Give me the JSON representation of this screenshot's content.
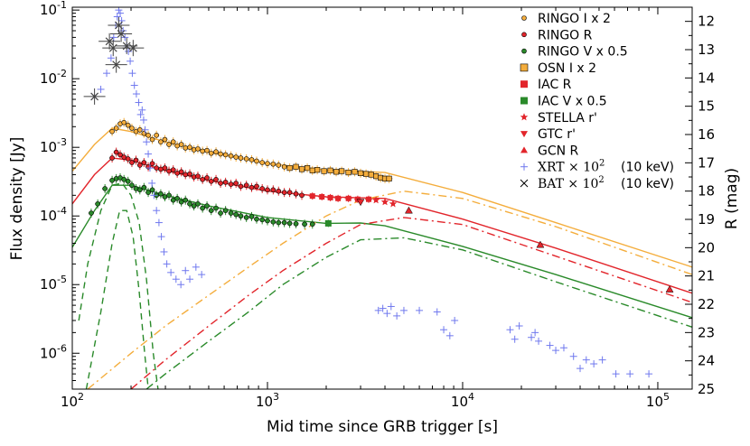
{
  "chart_data": {
    "type": "scatter",
    "title": "",
    "xlabel": "Mid time since GRB trigger [s]",
    "ylabel": "Flux density [Jy]",
    "y2label": "R (mag)",
    "x_scale": "log",
    "y_scale": "log",
    "xlim": [
      100,
      150000
    ],
    "ylim": [
      3e-07,
      0.11
    ],
    "y2lim": [
      11.5,
      25
    ],
    "x_ticks": [
      {
        "value": 100,
        "base": "10",
        "exp": "2"
      },
      {
        "value": 1000,
        "base": "10",
        "exp": "3"
      },
      {
        "value": 10000,
        "base": "10",
        "exp": "4"
      },
      {
        "value": 100000,
        "base": "10",
        "exp": "5"
      }
    ],
    "y_ticks": [
      {
        "value": 0.1,
        "base": "10",
        "exp": "-1"
      },
      {
        "value": 0.01,
        "base": "10",
        "exp": "-2"
      },
      {
        "value": 0.001,
        "base": "10",
        "exp": "-3"
      },
      {
        "value": 0.0001,
        "base": "10",
        "exp": "-4"
      },
      {
        "value": 1e-05,
        "base": "10",
        "exp": "-5"
      },
      {
        "value": 1e-06,
        "base": "10",
        "exp": "-6"
      }
    ],
    "y2_ticks": [
      "12",
      "13",
      "14",
      "15",
      "16",
      "17",
      "18",
      "19",
      "20",
      "21",
      "22",
      "23",
      "24",
      "25"
    ],
    "legend_position": "top-right",
    "legend": [
      {
        "key": "ringo_i",
        "label": "RINGO I x 2"
      },
      {
        "key": "ringo_r",
        "label": "RINGO R"
      },
      {
        "key": "ringo_v",
        "label": "RINGO V x 0.5"
      },
      {
        "key": "osn_i",
        "label": "OSN I x 2"
      },
      {
        "key": "iac_r",
        "label": "IAC R"
      },
      {
        "key": "iac_v",
        "label": "IAC V x 0.5"
      },
      {
        "key": "stella",
        "label": "STELLA r'"
      },
      {
        "key": "gtc",
        "label": "GTC r'"
      },
      {
        "key": "gcn",
        "label": "GCN R"
      },
      {
        "key": "xrt",
        "label": "XRT × 10",
        "sup": "2",
        "note": "(10 keV)"
      },
      {
        "key": "bat",
        "label": "BAT × 10",
        "sup": "2",
        "note": "(10 keV)"
      }
    ],
    "colors": {
      "orange": "#f4ad3c",
      "red": "#e2252b",
      "green": "#2a8a2a",
      "xrt": "#6f78ee",
      "bat": "#444444"
    },
    "series": [
      {
        "name": "RINGO I x 2",
        "key": "ringo_i",
        "x": [
          160,
          168,
          176,
          184,
          193,
          202,
          212,
          222,
          233,
          245,
          257,
          270,
          284,
          298,
          313,
          329,
          345,
          362,
          380,
          400,
          420,
          440,
          465,
          490,
          515,
          545,
          575,
          610,
          650,
          690,
          730,
          780,
          830,
          880,
          940,
          1000,
          1070,
          1140,
          1220
        ],
        "y": [
          0.0017,
          0.0019,
          0.0022,
          0.0023,
          0.0021,
          0.0019,
          0.0017,
          0.0018,
          0.0016,
          0.0015,
          0.0013,
          0.0015,
          0.0012,
          0.0013,
          0.0011,
          0.0012,
          0.00105,
          0.0011,
          0.00098,
          0.001,
          0.00092,
          0.00095,
          0.00088,
          0.0009,
          0.00082,
          0.00086,
          0.0008,
          0.00078,
          0.00075,
          0.00072,
          0.0007,
          0.00068,
          0.00066,
          0.00063,
          0.0006,
          0.00058,
          0.00057,
          0.00055,
          0.00052
        ]
      },
      {
        "name": "OSN I x 2",
        "key": "osn_i",
        "x": [
          1300,
          1400,
          1500,
          1600,
          1700,
          1800,
          1950,
          2100,
          2250,
          2400,
          2600,
          2800,
          3000,
          3200,
          3400,
          3600,
          3800,
          4000,
          4200
        ],
        "y": [
          0.0005,
          0.00052,
          0.00048,
          0.0005,
          0.00046,
          0.00047,
          0.00045,
          0.00046,
          0.00044,
          0.00045,
          0.00043,
          0.00044,
          0.00042,
          0.00041,
          0.0004,
          0.00038,
          0.00036,
          0.00035,
          0.00035
        ]
      },
      {
        "name": "RINGO R",
        "key": "ringo_r",
        "x": [
          160,
          168,
          176,
          184,
          193,
          202,
          212,
          222,
          233,
          245,
          257,
          270,
          284,
          298,
          313,
          329,
          345,
          362,
          380,
          400,
          420,
          440,
          465,
          490,
          515,
          545,
          575,
          610,
          650,
          690,
          730,
          780,
          830,
          880,
          940,
          1000,
          1070,
          1140,
          1220,
          1300,
          1400,
          1500
        ],
        "y": [
          0.0007,
          0.00085,
          0.00078,
          0.00072,
          0.00068,
          0.0006,
          0.00065,
          0.00055,
          0.0006,
          0.00052,
          0.00058,
          0.0005,
          0.00048,
          0.0005,
          0.00045,
          0.00047,
          0.00042,
          0.00044,
          0.0004,
          0.00041,
          0.00037,
          0.00038,
          0.00034,
          0.00036,
          0.00032,
          0.00034,
          0.0003,
          0.00031,
          0.00029,
          0.0003,
          0.00027,
          0.00028,
          0.00026,
          0.00027,
          0.00025,
          0.00024,
          0.00024,
          0.00023,
          0.00022,
          0.00022,
          0.00021,
          0.0002
        ]
      },
      {
        "name": "IAC R",
        "key": "iac_r",
        "x": [
          1700,
          1900,
          2100,
          2300,
          2600,
          2900,
          3300
        ],
        "y": [
          0.000195,
          0.00019,
          0.000185,
          0.00018,
          0.00018,
          0.000175,
          0.000175
        ]
      },
      {
        "name": "STELLA r'",
        "key": "stella",
        "x": [
          3600,
          4000,
          4400
        ],
        "y": [
          0.00017,
          0.00016,
          0.00015
        ]
      },
      {
        "name": "GTC r'",
        "key": "gtc",
        "x": [
          3000
        ],
        "y": [
          0.00016
        ]
      },
      {
        "name": "GCN R",
        "key": "gcn",
        "x": [
          5300,
          25000,
          115000
        ],
        "y": [
          0.00012,
          3.8e-05,
          8.5e-06
        ]
      },
      {
        "name": "RINGO V x 0.5",
        "key": "ringo_v",
        "x": [
          125,
          135,
          147,
          160,
          168,
          176,
          184,
          193,
          202,
          212,
          222,
          233,
          245,
          257,
          270,
          284,
          298,
          313,
          329,
          345,
          362,
          380,
          400,
          420,
          440,
          465,
          490,
          515,
          545,
          575,
          610,
          650,
          690,
          730,
          780,
          830,
          880,
          940,
          1000,
          1070,
          1140,
          1220,
          1300,
          1400,
          1550,
          1700
        ],
        "y": [
          0.00011,
          0.00015,
          0.00025,
          0.00033,
          0.00035,
          0.00036,
          0.00034,
          0.00032,
          0.00028,
          0.00025,
          0.00024,
          0.00026,
          0.00022,
          0.00024,
          0.0002,
          0.00021,
          0.00019,
          0.0002,
          0.00017,
          0.00018,
          0.00016,
          0.00017,
          0.00015,
          0.00014,
          0.00015,
          0.00013,
          0.00014,
          0.00012,
          0.00013,
          0.00011,
          0.00012,
          0.00011,
          0.000105,
          0.0001,
          9.5e-05,
          9.8e-05,
          9e-05,
          8.8e-05,
          8.5e-05,
          8.2e-05,
          8e-05,
          8e-05,
          7.8e-05,
          7.7e-05,
          7.6e-05,
          7.6e-05
        ]
      },
      {
        "name": "IAC V x 0.5",
        "key": "iac_v",
        "x": [
          2050
        ],
        "y": [
          7.8e-05
        ]
      },
      {
        "name": "XRT × 10^2 (10 keV)",
        "key": "xrt",
        "x": [
          140,
          150,
          158,
          163,
          167,
          170,
          173,
          176,
          179,
          182,
          186,
          190,
          194,
          198,
          203,
          208,
          213,
          219,
          224,
          228,
          232,
          236,
          240,
          245,
          250,
          256,
          262,
          270,
          278,
          286,
          295,
          305,
          320,
          340,
          360,
          380,
          400,
          430,
          460,
          3700,
          3900,
          4100,
          4300,
          4600,
          5000,
          6000,
          7400,
          8000,
          8600,
          9100,
          17500,
          18500,
          19500,
          22500,
          23500,
          24500,
          28000,
          30000,
          33000,
          37000,
          40000,
          43000,
          47000,
          52000,
          61000,
          72000,
          90000
        ],
        "y": [
          0.007,
          0.012,
          0.02,
          0.04,
          0.06,
          0.08,
          0.1,
          0.09,
          0.07,
          0.05,
          0.04,
          0.03,
          0.025,
          0.018,
          0.012,
          0.008,
          0.006,
          0.0045,
          0.003,
          0.0035,
          0.0025,
          0.0018,
          0.0012,
          0.0008,
          0.0005,
          0.0003,
          0.0002,
          0.00012,
          8e-05,
          5e-05,
          3e-05,
          2e-05,
          1.5e-05,
          1.2e-05,
          1e-05,
          1.6e-05,
          1.2e-05,
          1.8e-05,
          1.4e-05,
          4.2e-06,
          4.5e-06,
          3.8e-06,
          4.8e-06,
          3.5e-06,
          4.2e-06,
          4.2e-06,
          4e-06,
          2.2e-06,
          1.8e-06,
          3e-06,
          2.2e-06,
          1.6e-06,
          2.5e-06,
          1.7e-06,
          2e-06,
          1.5e-06,
          1.3e-06,
          1.1e-06,
          1.2e-06,
          9e-07,
          6e-07,
          8e-07,
          7e-07,
          8e-07,
          5e-07,
          5e-07,
          5e-07
        ]
      },
      {
        "name": "BAT × 10^2 (10 keV)",
        "key": "bat",
        "x": [
          130,
          155,
          162,
          168,
          173,
          178,
          190,
          205
        ],
        "y": [
          0.0055,
          0.035,
          0.028,
          0.016,
          0.06,
          0.045,
          0.03,
          0.028
        ]
      }
    ],
    "model_curves": [
      {
        "name": "orange total",
        "color": "#f4ad3c",
        "style": "solid",
        "x": [
          100,
          130,
          160,
          200,
          300,
          500,
          1000,
          2000,
          4000,
          10000,
          30000,
          150000
        ],
        "y": [
          0.00045,
          0.0011,
          0.0019,
          0.0017,
          0.0012,
          0.00085,
          0.00058,
          0.00047,
          0.00043,
          0.00022,
          8e-05,
          1.8e-05
        ]
      },
      {
        "name": "red total",
        "color": "#e2252b",
        "style": "solid",
        "x": [
          100,
          130,
          160,
          200,
          300,
          500,
          1000,
          2000,
          4000,
          10000,
          30000,
          150000
        ],
        "y": [
          0.00015,
          0.0004,
          0.0007,
          0.00065,
          0.00046,
          0.00033,
          0.00023,
          0.00019,
          0.00018,
          9e-05,
          3.4e-05,
          7.5e-06
        ]
      },
      {
        "name": "green total",
        "color": "#2a8a2a",
        "style": "solid",
        "x": [
          100,
          130,
          160,
          200,
          300,
          500,
          1000,
          2000,
          3000,
          4000,
          10000,
          30000,
          150000
        ],
        "y": [
          3.5e-05,
          0.00012,
          0.00028,
          0.00028,
          0.0002,
          0.00014,
          9.5e-05,
          7.8e-05,
          7.9e-05,
          7.2e-05,
          3.6e-05,
          1.4e-05,
          3.3e-06
        ]
      },
      {
        "name": "green reverse shock",
        "color": "#2a8a2a",
        "style": "dashed",
        "x": [
          108,
          120,
          140,
          160,
          180,
          200,
          220,
          240,
          260,
          275
        ],
        "y": [
          3e-06,
          2e-05,
          0.00012,
          0.00028,
          0.0003,
          0.0002,
          8e-05,
          1.2e-05,
          1e-06,
          3e-07
        ]
      },
      {
        "name": "green reverse shock 2",
        "color": "#2a8a2a",
        "style": "dashed",
        "x": [
          118,
          140,
          160,
          175,
          190,
          205,
          220,
          235,
          245
        ],
        "y": [
          3e-07,
          4e-06,
          4e-05,
          0.00012,
          0.00012,
          5e-05,
          8e-06,
          1e-06,
          3e-07
        ]
      },
      {
        "name": "orange forward shock",
        "color": "#f4ad3c",
        "style": "dashdot",
        "x": [
          120,
          200,
          300,
          500,
          800,
          1200,
          2000,
          3000,
          5000,
          10000,
          30000,
          150000
        ],
        "y": [
          3e-07,
          1e-06,
          2.5e-06,
          7e-06,
          1.8e-05,
          4e-05,
          0.0001,
          0.00017,
          0.00023,
          0.00018,
          7e-05,
          1.4e-05
        ]
      },
      {
        "name": "red forward shock",
        "color": "#e2252b",
        "style": "dashdot",
        "x": [
          200,
          300,
          500,
          800,
          1200,
          2000,
          3000,
          5000,
          10000,
          30000,
          150000
        ],
        "y": [
          3e-07,
          8e-07,
          2.5e-06,
          7e-06,
          1.6e-05,
          4e-05,
          7.5e-05,
          9.5e-05,
          7.5e-05,
          2.6e-05,
          5.5e-06
        ]
      },
      {
        "name": "green forward shock",
        "color": "#2a8a2a",
        "style": "dashdot",
        "x": [
          240,
          300,
          500,
          800,
          1200,
          2000,
          3000,
          5000,
          10000,
          30000,
          150000
        ],
        "y": [
          3e-07,
          5e-07,
          1.5e-06,
          4e-06,
          1e-05,
          2.5e-05,
          4.5e-05,
          4.8e-05,
          3.2e-05,
          1.1e-05,
          2.4e-06
        ]
      }
    ]
  }
}
